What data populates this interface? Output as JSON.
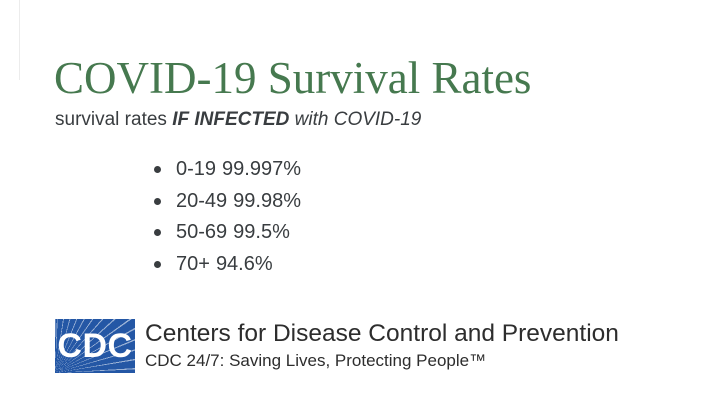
{
  "colors": {
    "title_green": "#46794f",
    "cdc_blue": "#2457a5",
    "text_dark": "#393d40",
    "text_black": "#2d2d2d"
  },
  "title": "COVID-19 Survival Rates",
  "subtitle": {
    "prefix": "survival rates ",
    "emphasis": "IF INFECTED",
    "suffix": " with COVID-19"
  },
  "rates": {
    "items": [
      {
        "age_group": "0-19",
        "rate": "99.997%"
      },
      {
        "age_group": "20-49",
        "rate": "99.98%"
      },
      {
        "age_group": "50-69",
        "rate": "99.5%"
      },
      {
        "age_group": "70+",
        "rate": "94.6%"
      }
    ]
  },
  "footer": {
    "logo_text": "CDC",
    "org_name": "Centers for Disease Control and Prevention",
    "tagline": "CDC 24/7: Saving Lives, Protecting People™"
  }
}
